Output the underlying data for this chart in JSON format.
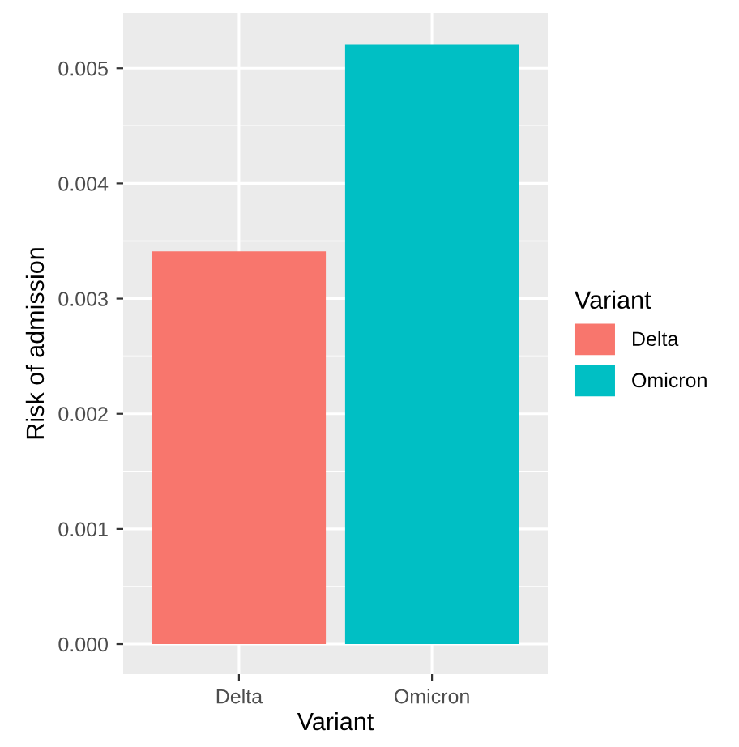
{
  "chart_data": {
    "type": "bar",
    "xlabel": "Variant",
    "ylabel": "Risk of admission",
    "legend_title": "Variant",
    "categories": [
      "Delta",
      "Omicron"
    ],
    "series": [
      {
        "name": "Delta",
        "color": "#f8766d",
        "values": [
          0.00341,
          null
        ]
      },
      {
        "name": "Omicron",
        "color": "#00bfc4",
        "values": [
          null,
          0.00521
        ]
      }
    ],
    "ylim": [
      -0.00026,
      0.00548
    ],
    "yticks": [
      {
        "value": 0,
        "label": "0.000"
      },
      {
        "value": 0.001,
        "label": "0.001"
      },
      {
        "value": 0.002,
        "label": "0.002"
      },
      {
        "value": 0.003,
        "label": "0.003"
      },
      {
        "value": 0.004,
        "label": "0.004"
      },
      {
        "value": 0.005,
        "label": "0.005"
      }
    ],
    "grid": true,
    "legend": "right"
  }
}
